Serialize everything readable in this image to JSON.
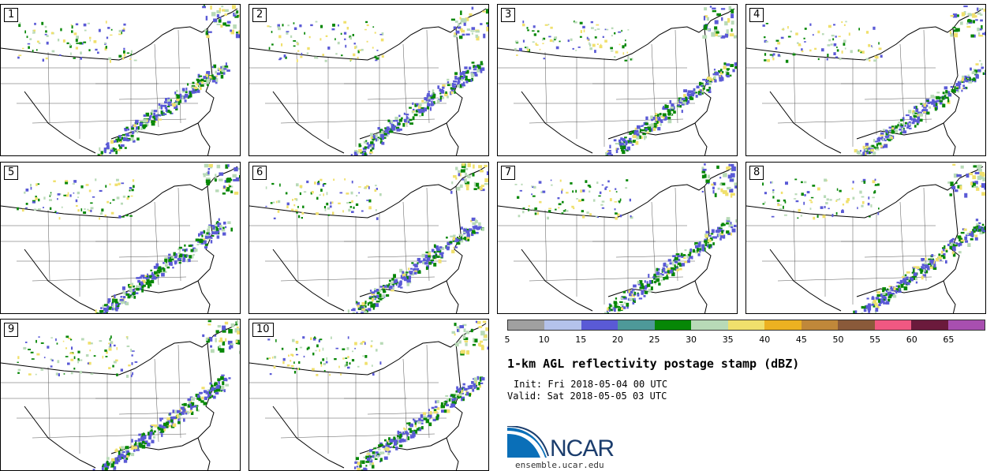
{
  "panels": [
    "1",
    "2",
    "3",
    "4",
    "5",
    "6",
    "7",
    "8",
    "9",
    "10"
  ],
  "colorbar": {
    "colors": [
      "#a0a0a0",
      "#b4c2eb",
      "#5a5ad6",
      "#4e9999",
      "#068706",
      "#b8dab7",
      "#f0e06c",
      "#ecb121",
      "#c0883a",
      "#8a5a3a",
      "#f05882",
      "#6b1a3c",
      "#a84fb0"
    ],
    "ticks": [
      "5",
      "10",
      "15",
      "20",
      "25",
      "30",
      "35",
      "40",
      "45",
      "50",
      "55",
      "60",
      "65"
    ]
  },
  "title": "1-km AGL reflectivity postage stamp (dBZ)",
  "init": "Init: Fri 2018-05-04 00 UTC",
  "valid": "Valid: Sat 2018-05-05 03 UTC",
  "logo": {
    "text": "NCAR",
    "url": "ensemble.ucar.edu"
  }
}
